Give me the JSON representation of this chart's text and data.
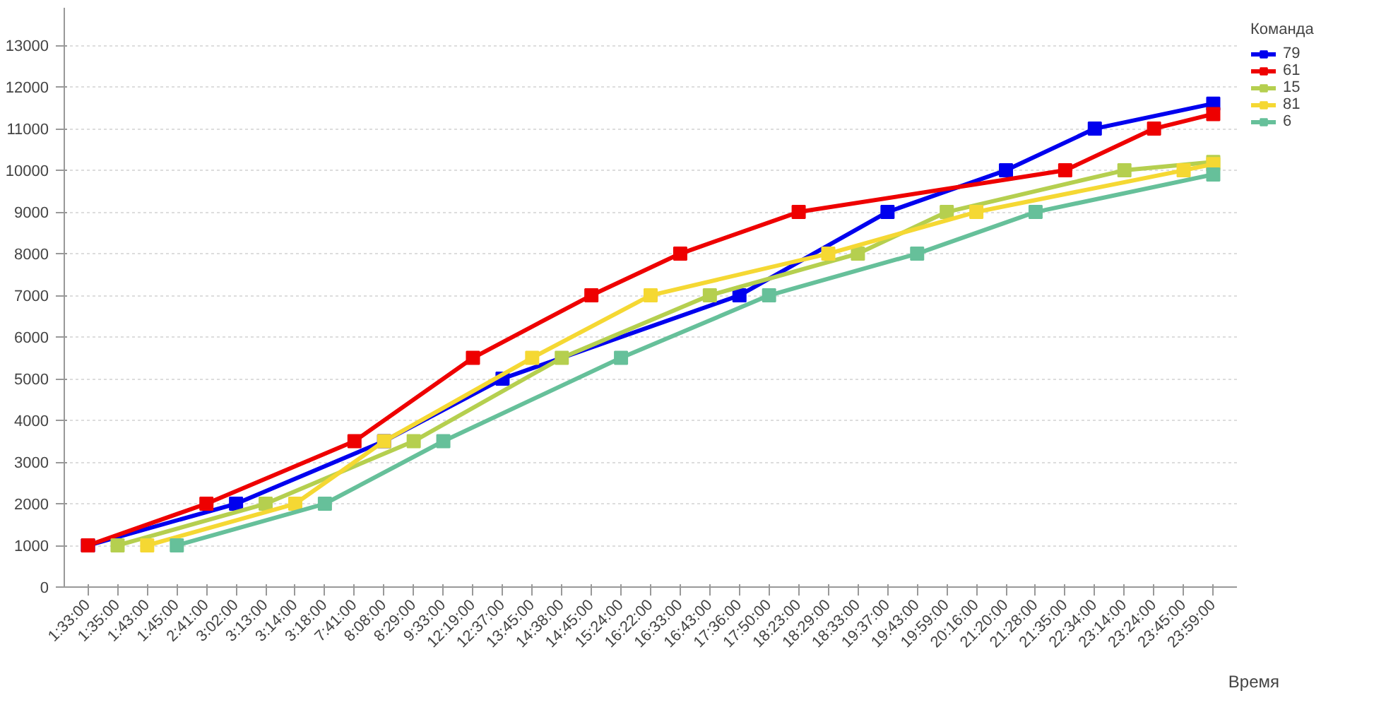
{
  "chart_data": {
    "type": "line",
    "xlabel": "Время",
    "legend_title": "Команда",
    "categories": [
      "1:33:00",
      "1:35:00",
      "1:43:00",
      "1:45:00",
      "2:41:00",
      "3:02:00",
      "3:13:00",
      "3:14:00",
      "3:18:00",
      "7:41:00",
      "8:08:00",
      "8:29:00",
      "9:33:00",
      "12:19:00",
      "12:37:00",
      "13:45:00",
      "14:38:00",
      "14:45:00",
      "15:24:00",
      "16:22:00",
      "16:33:00",
      "16:43:00",
      "17:36:00",
      "17:50:00",
      "18:23:00",
      "18:29:00",
      "18:33:00",
      "19:37:00",
      "19:43:00",
      "19:59:00",
      "20:16:00",
      "21:20:00",
      "21:28:00",
      "21:35:00",
      "22:34:00",
      "23:14:00",
      "23:24:00",
      "23:45:00",
      "23:59:00"
    ],
    "series": [
      {
        "name": "79",
        "color": "#0000ee",
        "values": [
          1000,
          null,
          null,
          null,
          null,
          2000,
          null,
          null,
          null,
          null,
          3500,
          null,
          null,
          null,
          5000,
          null,
          null,
          null,
          null,
          null,
          null,
          null,
          7000,
          null,
          null,
          null,
          null,
          9000,
          null,
          null,
          null,
          10000,
          null,
          null,
          11000,
          null,
          null,
          null,
          11600
        ]
      },
      {
        "name": "61",
        "color": "#ee0000",
        "values": [
          1000,
          null,
          null,
          null,
          2000,
          null,
          null,
          null,
          null,
          3500,
          null,
          null,
          null,
          5500,
          null,
          null,
          null,
          7000,
          null,
          null,
          8000,
          null,
          null,
          null,
          9000,
          null,
          null,
          null,
          null,
          null,
          null,
          null,
          null,
          10000,
          null,
          null,
          11000,
          null,
          11350
        ]
      },
      {
        "name": "15",
        "color": "#b5cf4f",
        "values": [
          null,
          1000,
          null,
          null,
          null,
          null,
          2000,
          null,
          null,
          null,
          null,
          3500,
          null,
          null,
          null,
          null,
          5500,
          null,
          null,
          null,
          null,
          7000,
          null,
          null,
          null,
          null,
          8000,
          null,
          null,
          9000,
          null,
          null,
          null,
          null,
          null,
          10000,
          null,
          null,
          10200
        ]
      },
      {
        "name": "81",
        "color": "#f5d833",
        "values": [
          null,
          null,
          1000,
          null,
          null,
          null,
          null,
          2000,
          null,
          null,
          3500,
          null,
          null,
          null,
          null,
          5500,
          null,
          null,
          null,
          7000,
          null,
          null,
          null,
          null,
          null,
          8000,
          null,
          null,
          null,
          null,
          9000,
          null,
          null,
          null,
          null,
          null,
          null,
          10000,
          10150
        ]
      },
      {
        "name": "6",
        "color": "#66c09a",
        "values": [
          null,
          null,
          null,
          1000,
          null,
          null,
          null,
          null,
          2000,
          null,
          null,
          null,
          3500,
          null,
          null,
          null,
          null,
          null,
          5500,
          null,
          null,
          null,
          null,
          7000,
          null,
          null,
          null,
          null,
          8000,
          null,
          null,
          null,
          9000,
          null,
          null,
          null,
          null,
          null,
          9900
        ]
      }
    ],
    "ylim": [
      0,
      13900
    ],
    "yticks": [
      0,
      1000,
      2000,
      3000,
      4000,
      5000,
      6000,
      7000,
      8000,
      9000,
      10000,
      11000,
      12000,
      13000
    ],
    "grid": "y",
    "legend": "top right",
    "marker": "square",
    "line_style": "solid"
  }
}
